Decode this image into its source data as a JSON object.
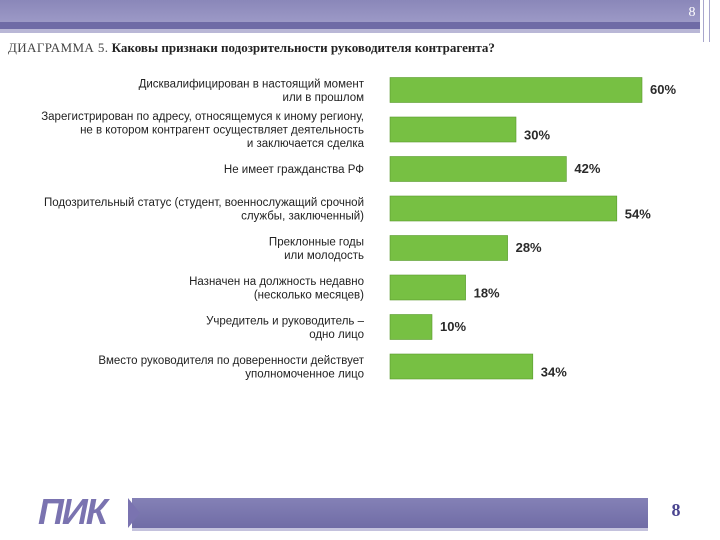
{
  "slide": {
    "page_number": "8",
    "logo_text": "ПИК"
  },
  "colors": {
    "bar": "#77c043",
    "bar_border": "#5a9a30",
    "header": "#8a87b9",
    "logo": "#7a73b0"
  },
  "chart_data": {
    "type": "bar",
    "orientation": "horizontal",
    "title_prefix": "ДИАГРАММА 5.",
    "title": "Каковы признаки подозрительности руководителя контрагента?",
    "categories": [
      [
        "Дисквалифицирован в настоящий момент",
        "или в прошлом"
      ],
      [
        "Зарегистрирован по адресу, относящемуся к иному региону,",
        "не в котором контрагент осуществляет деятельность",
        "и заключается сделка"
      ],
      [
        "Не имеет гражданства РФ"
      ],
      [
        "Подозрительный статус (студент, военнослужащий срочной",
        "службы, заключенный)"
      ],
      [
        "Преклонные годы",
        "или молодость"
      ],
      [
        "Назначен на должность недавно",
        "(несколько месяцев)"
      ],
      [
        "Учредитель и руководитель –",
        "одно лицо"
      ],
      [
        "Вместо руководителя по доверенности действует",
        "уполномоченное лицо"
      ]
    ],
    "values": [
      60,
      30,
      42,
      54,
      28,
      18,
      10,
      34
    ],
    "value_labels": [
      "60%",
      "30%",
      "42%",
      "54%",
      "28%",
      "18%",
      "10%",
      "34%"
    ],
    "unit": "%",
    "xlim": [
      0,
      60
    ],
    "grid": false,
    "legend": "none"
  }
}
